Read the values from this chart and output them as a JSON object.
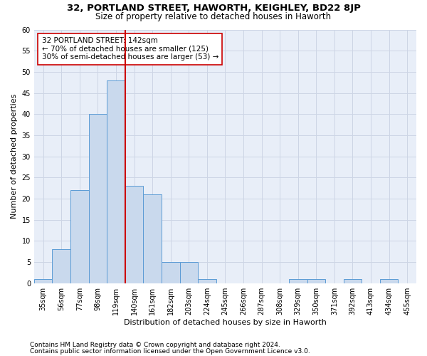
{
  "title1": "32, PORTLAND STREET, HAWORTH, KEIGHLEY, BD22 8JP",
  "title2": "Size of property relative to detached houses in Haworth",
  "xlabel": "Distribution of detached houses by size in Haworth",
  "ylabel": "Number of detached properties",
  "bar_labels": [
    "35sqm",
    "56sqm",
    "77sqm",
    "98sqm",
    "119sqm",
    "140sqm",
    "161sqm",
    "182sqm",
    "203sqm",
    "224sqm",
    "245sqm",
    "266sqm",
    "287sqm",
    "308sqm",
    "329sqm",
    "350sqm",
    "371sqm",
    "392sqm",
    "413sqm",
    "434sqm",
    "455sqm"
  ],
  "bar_values": [
    1,
    8,
    22,
    40,
    48,
    23,
    21,
    5,
    5,
    1,
    0,
    0,
    0,
    0,
    1,
    1,
    0,
    1,
    0,
    1,
    0
  ],
  "bar_color": "#c9d9ed",
  "bar_edge_color": "#5b9bd5",
  "vline_x": 4.5,
  "vline_color": "#cc0000",
  "annotation_line1": "32 PORTLAND STREET: 142sqm",
  "annotation_line2": "← 70% of detached houses are smaller (125)",
  "annotation_line3": "30% of semi-detached houses are larger (53) →",
  "annotation_box_color": "#ffffff",
  "annotation_box_edge": "#cc0000",
  "ylim": [
    0,
    60
  ],
  "yticks": [
    0,
    5,
    10,
    15,
    20,
    25,
    30,
    35,
    40,
    45,
    50,
    55,
    60
  ],
  "grid_color": "#cdd5e5",
  "bg_color": "#e8eef8",
  "footer1": "Contains HM Land Registry data © Crown copyright and database right 2024.",
  "footer2": "Contains public sector information licensed under the Open Government Licence v3.0.",
  "title1_fontsize": 9.5,
  "title2_fontsize": 8.5,
  "xlabel_fontsize": 8,
  "ylabel_fontsize": 8,
  "tick_fontsize": 7,
  "annotation_fontsize": 7.5,
  "footer_fontsize": 6.5
}
